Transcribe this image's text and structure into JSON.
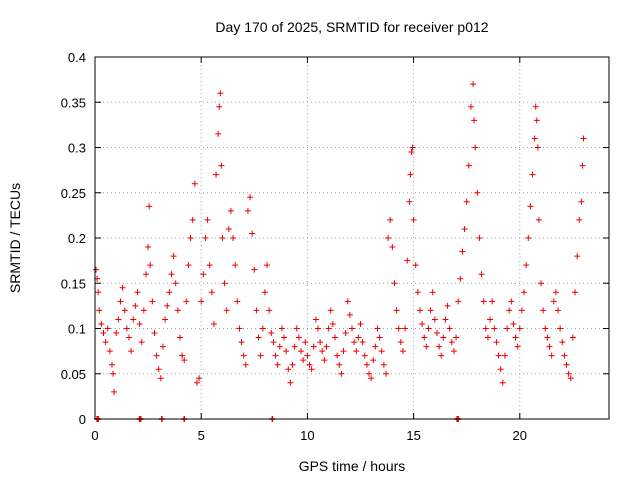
{
  "chart_data": {
    "type": "scatter",
    "title": "Day 170 of 2025, SRMTID for receiver p012",
    "xlabel": "GPS time / hours",
    "ylabel": "SRMTID / TECUs",
    "xlim": [
      0,
      24.2
    ],
    "ylim": [
      0,
      0.4
    ],
    "x_ticks": [
      0,
      5,
      10,
      15,
      20
    ],
    "y_ticks": [
      0,
      0.05,
      0.1,
      0.15,
      0.2,
      0.25,
      0.3,
      0.35,
      0.4
    ],
    "x_tick_labels": [
      "0",
      "5",
      "10",
      "15",
      "20"
    ],
    "y_tick_labels": [
      "0",
      "0.05",
      "0.1",
      "0.15",
      "0.2",
      "0.25",
      "0.3",
      "0.35",
      "0.4"
    ],
    "grid": true,
    "marker": "+",
    "colors": {
      "series": "#ee0000",
      "grid": "#a0a0a0",
      "axes": "#000000"
    },
    "series": [
      {
        "name": "p012",
        "points": [
          [
            0.05,
            0.165
          ],
          [
            0.1,
            0.155
          ],
          [
            0.15,
            0.14
          ],
          [
            0.2,
            0.12
          ],
          [
            0.3,
            0.105
          ],
          [
            0.4,
            0.095
          ],
          [
            0.5,
            0.085
          ],
          [
            0.6,
            0.1
          ],
          [
            0.7,
            0.075
          ],
          [
            0.8,
            0.06
          ],
          [
            0.85,
            0.05
          ],
          [
            0.9,
            0.03
          ],
          [
            1.0,
            0.095
          ],
          [
            1.1,
            0.11
          ],
          [
            1.2,
            0.13
          ],
          [
            1.3,
            0.145
          ],
          [
            1.4,
            0.12
          ],
          [
            1.5,
            0.1
          ],
          [
            1.6,
            0.09
          ],
          [
            1.7,
            0.075
          ],
          [
            1.8,
            0.11
          ],
          [
            1.9,
            0.125
          ],
          [
            2.0,
            0.14
          ],
          [
            2.1,
            0.105
          ],
          [
            2.2,
            0.085
          ],
          [
            2.3,
            0.12
          ],
          [
            2.4,
            0.16
          ],
          [
            2.5,
            0.19
          ],
          [
            2.55,
            0.235
          ],
          [
            2.6,
            0.17
          ],
          [
            2.7,
            0.13
          ],
          [
            2.8,
            0.095
          ],
          [
            2.9,
            0.07
          ],
          [
            3.0,
            0.055
          ],
          [
            3.1,
            0.045
          ],
          [
            3.2,
            0.08
          ],
          [
            3.3,
            0.11
          ],
          [
            3.4,
            0.125
          ],
          [
            3.5,
            0.14
          ],
          [
            3.6,
            0.16
          ],
          [
            3.7,
            0.18
          ],
          [
            3.8,
            0.15
          ],
          [
            3.9,
            0.12
          ],
          [
            4.0,
            0.09
          ],
          [
            4.1,
            0.07
          ],
          [
            4.2,
            0.065
          ],
          [
            4.3,
            0.13
          ],
          [
            4.4,
            0.17
          ],
          [
            4.5,
            0.2
          ],
          [
            4.6,
            0.22
          ],
          [
            4.7,
            0.26
          ],
          [
            4.8,
            0.04
          ],
          [
            4.9,
            0.045
          ],
          [
            5.0,
            0.13
          ],
          [
            5.1,
            0.16
          ],
          [
            5.2,
            0.2
          ],
          [
            5.3,
            0.22
          ],
          [
            5.4,
            0.17
          ],
          [
            5.5,
            0.14
          ],
          [
            5.6,
            0.105
          ],
          [
            5.7,
            0.27
          ],
          [
            5.8,
            0.315
          ],
          [
            5.85,
            0.345
          ],
          [
            5.9,
            0.36
          ],
          [
            5.95,
            0.28
          ],
          [
            6.0,
            0.2
          ],
          [
            6.1,
            0.15
          ],
          [
            6.2,
            0.12
          ],
          [
            6.3,
            0.21
          ],
          [
            6.4,
            0.23
          ],
          [
            6.5,
            0.2
          ],
          [
            6.6,
            0.17
          ],
          [
            6.7,
            0.13
          ],
          [
            6.8,
            0.1
          ],
          [
            6.9,
            0.085
          ],
          [
            7.0,
            0.07
          ],
          [
            7.1,
            0.06
          ],
          [
            7.2,
            0.23
          ],
          [
            7.3,
            0.245
          ],
          [
            7.4,
            0.205
          ],
          [
            7.5,
            0.165
          ],
          [
            7.6,
            0.12
          ],
          [
            7.7,
            0.09
          ],
          [
            7.8,
            0.07
          ],
          [
            7.9,
            0.1
          ],
          [
            8.0,
            0.14
          ],
          [
            8.1,
            0.17
          ],
          [
            8.2,
            0.12
          ],
          [
            8.3,
            0.095
          ],
          [
            8.4,
            0.085
          ],
          [
            8.5,
            0.07
          ],
          [
            8.6,
            0.06
          ],
          [
            8.7,
            0.08
          ],
          [
            8.8,
            0.1
          ],
          [
            8.9,
            0.09
          ],
          [
            9.0,
            0.075
          ],
          [
            9.1,
            0.055
          ],
          [
            9.2,
            0.04
          ],
          [
            9.3,
            0.06
          ],
          [
            9.4,
            0.08
          ],
          [
            9.5,
            0.1
          ],
          [
            9.6,
            0.09
          ],
          [
            9.7,
            0.075
          ],
          [
            9.8,
            0.065
          ],
          [
            9.9,
            0.085
          ],
          [
            10.0,
            0.07
          ],
          [
            10.1,
            0.06
          ],
          [
            10.2,
            0.055
          ],
          [
            10.3,
            0.08
          ],
          [
            10.4,
            0.11
          ],
          [
            10.5,
            0.1
          ],
          [
            10.6,
            0.085
          ],
          [
            10.7,
            0.075
          ],
          [
            10.8,
            0.065
          ],
          [
            10.9,
            0.08
          ],
          [
            11.0,
            0.1
          ],
          [
            11.1,
            0.12
          ],
          [
            11.2,
            0.105
          ],
          [
            11.3,
            0.09
          ],
          [
            11.4,
            0.07
          ],
          [
            11.5,
            0.06
          ],
          [
            11.6,
            0.05
          ],
          [
            11.7,
            0.075
          ],
          [
            11.8,
            0.095
          ],
          [
            11.9,
            0.13
          ],
          [
            12.0,
            0.115
          ],
          [
            12.1,
            0.1
          ],
          [
            12.2,
            0.085
          ],
          [
            12.3,
            0.075
          ],
          [
            12.4,
            0.09
          ],
          [
            12.5,
            0.105
          ],
          [
            12.6,
            0.085
          ],
          [
            12.7,
            0.07
          ],
          [
            12.8,
            0.06
          ],
          [
            12.9,
            0.05
          ],
          [
            13.0,
            0.045
          ],
          [
            13.1,
            0.065
          ],
          [
            13.2,
            0.08
          ],
          [
            13.3,
            0.1
          ],
          [
            13.4,
            0.09
          ],
          [
            13.5,
            0.075
          ],
          [
            13.6,
            0.06
          ],
          [
            13.7,
            0.05
          ],
          [
            13.8,
            0.2
          ],
          [
            13.9,
            0.22
          ],
          [
            14.0,
            0.19
          ],
          [
            14.1,
            0.15
          ],
          [
            14.2,
            0.12
          ],
          [
            14.3,
            0.1
          ],
          [
            14.4,
            0.085
          ],
          [
            14.5,
            0.075
          ],
          [
            14.6,
            0.1
          ],
          [
            14.7,
            0.175
          ],
          [
            14.8,
            0.24
          ],
          [
            14.85,
            0.27
          ],
          [
            14.9,
            0.295
          ],
          [
            14.95,
            0.3
          ],
          [
            15.0,
            0.22
          ],
          [
            15.1,
            0.17
          ],
          [
            15.2,
            0.14
          ],
          [
            15.3,
            0.12
          ],
          [
            15.4,
            0.105
          ],
          [
            15.5,
            0.09
          ],
          [
            15.6,
            0.08
          ],
          [
            15.7,
            0.1
          ],
          [
            15.8,
            0.12
          ],
          [
            15.9,
            0.14
          ],
          [
            16.0,
            0.11
          ],
          [
            16.1,
            0.095
          ],
          [
            16.2,
            0.08
          ],
          [
            16.3,
            0.07
          ],
          [
            16.4,
            0.09
          ],
          [
            16.5,
            0.11
          ],
          [
            16.6,
            0.125
          ],
          [
            16.7,
            0.1
          ],
          [
            16.8,
            0.085
          ],
          [
            16.9,
            0.075
          ],
          [
            17.0,
            0.09
          ],
          [
            17.1,
            0.13
          ],
          [
            17.2,
            0.155
          ],
          [
            17.3,
            0.185
          ],
          [
            17.4,
            0.21
          ],
          [
            17.5,
            0.24
          ],
          [
            17.6,
            0.28
          ],
          [
            17.7,
            0.345
          ],
          [
            17.8,
            0.37
          ],
          [
            17.85,
            0.33
          ],
          [
            17.9,
            0.3
          ],
          [
            18.0,
            0.25
          ],
          [
            18.1,
            0.2
          ],
          [
            18.2,
            0.16
          ],
          [
            18.3,
            0.13
          ],
          [
            18.4,
            0.1
          ],
          [
            18.5,
            0.09
          ],
          [
            18.6,
            0.11
          ],
          [
            18.7,
            0.13
          ],
          [
            18.8,
            0.1
          ],
          [
            18.9,
            0.085
          ],
          [
            19.0,
            0.07
          ],
          [
            19.1,
            0.055
          ],
          [
            19.2,
            0.04
          ],
          [
            19.3,
            0.07
          ],
          [
            19.4,
            0.1
          ],
          [
            19.5,
            0.12
          ],
          [
            19.6,
            0.13
          ],
          [
            19.7,
            0.105
          ],
          [
            19.8,
            0.09
          ],
          [
            19.9,
            0.08
          ],
          [
            20.0,
            0.1
          ],
          [
            20.1,
            0.12
          ],
          [
            20.2,
            0.14
          ],
          [
            20.3,
            0.17
          ],
          [
            20.4,
            0.2
          ],
          [
            20.5,
            0.235
          ],
          [
            20.6,
            0.27
          ],
          [
            20.7,
            0.31
          ],
          [
            20.75,
            0.345
          ],
          [
            20.8,
            0.33
          ],
          [
            20.85,
            0.3
          ],
          [
            20.9,
            0.22
          ],
          [
            21.0,
            0.15
          ],
          [
            21.1,
            0.12
          ],
          [
            21.2,
            0.1
          ],
          [
            21.3,
            0.09
          ],
          [
            21.4,
            0.08
          ],
          [
            21.5,
            0.07
          ],
          [
            21.6,
            0.13
          ],
          [
            21.7,
            0.14
          ],
          [
            21.8,
            0.12
          ],
          [
            21.9,
            0.1
          ],
          [
            22.0,
            0.085
          ],
          [
            22.1,
            0.07
          ],
          [
            22.2,
            0.06
          ],
          [
            22.3,
            0.05
          ],
          [
            22.4,
            0.045
          ],
          [
            22.5,
            0.09
          ],
          [
            22.6,
            0.14
          ],
          [
            22.7,
            0.18
          ],
          [
            22.8,
            0.22
          ],
          [
            22.9,
            0.24
          ],
          [
            22.95,
            0.28
          ],
          [
            23.0,
            0.31
          ]
        ],
        "zero_points": [
          0.1,
          0.15,
          2.1,
          2.15,
          3.15,
          4.2,
          8.35,
          17.05,
          17.1
        ]
      }
    ]
  }
}
